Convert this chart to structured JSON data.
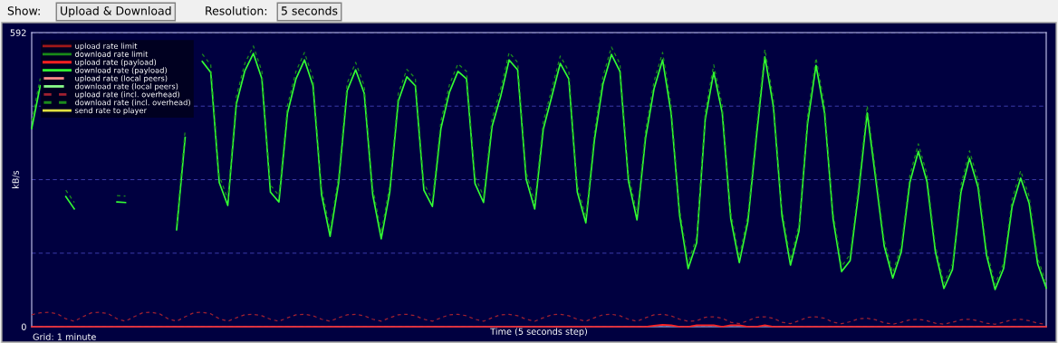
{
  "chart_data": {
    "type": "line",
    "xlabel": "Time (5 seconds step)",
    "ylabel": "kB/s",
    "annotations": [
      "Show:",
      "Upload & Download",
      "Resolution:",
      "5 seconds",
      "Grid: 1 minute"
    ],
    "categories": [
      null,
      null,
      null,
      null,
      null,
      null,
      null,
      null,
      null,
      null,
      null,
      null,
      null,
      null,
      null,
      null,
      null,
      null,
      null,
      null,
      null,
      null,
      null,
      null,
      null,
      null,
      null,
      null,
      null,
      null,
      null,
      null,
      null,
      null,
      null,
      null,
      null,
      null,
      null,
      null,
      null,
      null,
      null,
      null,
      null,
      null,
      null,
      null,
      null,
      null,
      null,
      null,
      null,
      null,
      null,
      null,
      null,
      null,
      null,
      null,
      null,
      null,
      null,
      null,
      null,
      null,
      null,
      null,
      null,
      null,
      null,
      null,
      null,
      null,
      null,
      null,
      null,
      null,
      null,
      null,
      null,
      null,
      null,
      null,
      null,
      null,
      null,
      null,
      null,
      null,
      null,
      null,
      null,
      null,
      null,
      null,
      null,
      null,
      null,
      null,
      null,
      null,
      null,
      null,
      null,
      null,
      null,
      null,
      null,
      null,
      null,
      null,
      null,
      null,
      null,
      null,
      null,
      null,
      null,
      null
    ],
    "ylim": [
      0,
      592
    ],
    "yticks": [
      0,
      {
        "value": 148,
        "label": null
      },
      {
        "value": 296,
        "label": null
      },
      {
        "value": 444,
        "label": null
      },
      592
    ],
    "grid": "y",
    "legend": "top left",
    "series": [
      {
        "name": "upload rate limit",
        "color": "#a01818",
        "line_style": "solid",
        "values": [
          null,
          null,
          null,
          null,
          null,
          null,
          null,
          null,
          null,
          null,
          null,
          null,
          null,
          null,
          null,
          null,
          null,
          null,
          null,
          null,
          null,
          null,
          null,
          null,
          null,
          null,
          null,
          null,
          null,
          null,
          null,
          null,
          null,
          null,
          null,
          null,
          null,
          null,
          null,
          null,
          null,
          null,
          null,
          null,
          null,
          null,
          null,
          null,
          null,
          null,
          null,
          null,
          null,
          null,
          null,
          null,
          null,
          null,
          null,
          null,
          null,
          null,
          null,
          null,
          null,
          null,
          null,
          null,
          null,
          null,
          null,
          null,
          null,
          null,
          null,
          null,
          null,
          null,
          null,
          null,
          null,
          null,
          null,
          null,
          null,
          null,
          null,
          null,
          null,
          null,
          null,
          null,
          null,
          null,
          null,
          null,
          null,
          null,
          null,
          null,
          null,
          null,
          null,
          null,
          null,
          null,
          null,
          null,
          null,
          null,
          null,
          null,
          null,
          null,
          null,
          null,
          null,
          null,
          null,
          null
        ]
      },
      {
        "name": "download rate limit",
        "color": "#188a18",
        "line_style": "solid",
        "values": [
          null,
          null,
          null,
          null,
          null,
          null,
          null,
          null,
          null,
          null,
          null,
          null,
          null,
          null,
          null,
          null,
          null,
          null,
          null,
          null,
          null,
          null,
          null,
          null,
          null,
          null,
          null,
          null,
          null,
          null,
          null,
          null,
          null,
          null,
          null,
          null,
          null,
          null,
          null,
          null,
          null,
          null,
          null,
          null,
          null,
          null,
          null,
          null,
          null,
          null,
          null,
          null,
          null,
          null,
          null,
          null,
          null,
          null,
          null,
          null,
          null,
          null,
          null,
          null,
          null,
          null,
          null,
          null,
          null,
          null,
          null,
          null,
          null,
          null,
          null,
          null,
          null,
          null,
          null,
          null,
          null,
          null,
          null,
          null,
          null,
          null,
          null,
          null,
          null,
          null,
          null,
          null,
          null,
          null,
          null,
          null,
          null,
          null,
          null,
          null,
          null,
          null,
          null,
          null,
          null,
          null,
          null,
          null,
          null,
          null,
          null,
          null,
          null,
          null,
          null,
          null,
          null,
          null,
          null,
          null
        ]
      },
      {
        "name": "upload rate (payload)",
        "color": "#ff2020",
        "line_style": "solid",
        "values": [
          0,
          0,
          0,
          0,
          0,
          0,
          0,
          0,
          0,
          0,
          0,
          0,
          0,
          0,
          0,
          0,
          0,
          0,
          0,
          0,
          0,
          0,
          0,
          0,
          0,
          0,
          0,
          0,
          0,
          0,
          0,
          0,
          0,
          0,
          0,
          0,
          0,
          0,
          0,
          0,
          0,
          0,
          0,
          0,
          0,
          0,
          0,
          0,
          0,
          0,
          0,
          0,
          0,
          0,
          0,
          0,
          0,
          0,
          0,
          0,
          0,
          0,
          0,
          0,
          0,
          0,
          0,
          0,
          0,
          0,
          0,
          0,
          0,
          2,
          4,
          3,
          0,
          0,
          3,
          3,
          3,
          0,
          3,
          3,
          0,
          0,
          3,
          0,
          0,
          0,
          0,
          0,
          0,
          0,
          0,
          0,
          0,
          0,
          0,
          0,
          0,
          0,
          0,
          0,
          0,
          0,
          0,
          0,
          0,
          0,
          0,
          0,
          0,
          0,
          0,
          0,
          0,
          0,
          0,
          0
        ]
      },
      {
        "name": "download rate (payload)",
        "color": "#33ff33",
        "line_style": "solid",
        "values": [
          399,
          485,
          null,
          null,
          262,
          237,
          null,
          null,
          null,
          null,
          251,
          250,
          null,
          null,
          null,
          null,
          null,
          195,
          381,
          null,
          534,
          512,
          290,
          244,
          448,
          515,
          550,
          499,
          271,
          251,
          430,
          499,
          537,
          485,
          266,
          182,
          290,
          475,
          517,
          470,
          266,
          177,
          271,
          454,
          503,
          485,
          275,
          242,
          399,
          472,
          514,
          499,
          288,
          250,
          403,
          463,
          537,
          517,
          297,
          237,
          397,
          463,
          530,
          499,
          271,
          209,
          375,
          488,
          548,
          514,
          293,
          215,
          379,
          479,
          537,
          430,
          224,
          117,
          169,
          417,
          512,
          430,
          217,
          129,
          211,
          381,
          543,
          443,
          224,
          124,
          193,
          408,
          526,
          430,
          217,
          111,
          133,
          271,
          430,
          297,
          162,
          98,
          151,
          290,
          353,
          293,
          151,
          77,
          115,
          271,
          339,
          281,
          144,
          75,
          117,
          242,
          299,
          248,
          126,
          78
        ]
      },
      {
        "name": "upload rate (local peers)",
        "color": "#ff8a8a",
        "line_style": "dashed",
        "values": [
          null,
          null,
          null,
          null,
          null,
          null,
          null,
          null,
          null,
          null,
          null,
          null,
          null,
          null,
          null,
          null,
          null,
          null,
          null,
          null,
          null,
          null,
          null,
          null,
          null,
          null,
          null,
          null,
          null,
          null,
          null,
          null,
          null,
          null,
          null,
          null,
          null,
          null,
          null,
          null,
          null,
          null,
          null,
          null,
          null,
          null,
          null,
          null,
          null,
          null,
          null,
          null,
          null,
          null,
          null,
          null,
          null,
          null,
          null,
          null,
          null,
          null,
          null,
          null,
          null,
          null,
          null,
          null,
          null,
          null,
          null,
          null,
          null,
          null,
          null,
          null,
          null,
          null,
          null,
          null,
          null,
          null,
          null,
          null,
          null,
          null,
          null,
          null,
          null,
          null,
          null,
          null,
          null,
          null,
          null,
          null,
          null,
          null,
          null,
          null,
          null,
          null,
          null,
          null,
          null,
          null,
          null,
          null,
          null,
          null,
          null,
          null,
          null,
          null,
          null,
          null,
          null,
          null,
          null,
          null
        ]
      },
      {
        "name": "download rate (local peers)",
        "color": "#8aff8a",
        "line_style": "dashed",
        "values": [
          null,
          null,
          null,
          null,
          null,
          null,
          null,
          null,
          null,
          null,
          null,
          null,
          null,
          null,
          null,
          null,
          null,
          null,
          null,
          null,
          null,
          null,
          null,
          null,
          null,
          null,
          null,
          null,
          null,
          null,
          null,
          null,
          null,
          null,
          null,
          null,
          null,
          null,
          null,
          null,
          null,
          null,
          null,
          null,
          null,
          null,
          null,
          null,
          null,
          null,
          null,
          null,
          null,
          null,
          null,
          null,
          null,
          null,
          null,
          null,
          null,
          null,
          null,
          null,
          null,
          null,
          null,
          null,
          null,
          null,
          null,
          null,
          null,
          null,
          null,
          null,
          null,
          null,
          null,
          null,
          null,
          null,
          null,
          null,
          null,
          null,
          null,
          null,
          null,
          null,
          null,
          null,
          null,
          null,
          null,
          null,
          null,
          null,
          null,
          null,
          null,
          null,
          null,
          null,
          null,
          null,
          null,
          null,
          null,
          null,
          null,
          null,
          null,
          null,
          null,
          null,
          null,
          null,
          null,
          null
        ]
      },
      {
        "name": "upload rate (incl. overhead)",
        "color": "#a02030",
        "line_style": "dotted",
        "values": [
          24,
          28,
          29,
          26,
          16,
          11,
          20,
          28,
          29,
          26,
          16,
          11,
          20,
          28,
          29,
          26,
          16,
          11,
          20,
          28,
          29,
          26,
          16,
          11,
          18,
          24,
          25,
          22,
          15,
          11,
          18,
          24,
          25,
          22,
          15,
          11,
          18,
          24,
          25,
          22,
          15,
          11,
          18,
          24,
          25,
          22,
          15,
          11,
          18,
          24,
          25,
          22,
          15,
          11,
          18,
          24,
          25,
          22,
          15,
          11,
          18,
          24,
          25,
          22,
          15,
          11,
          18,
          24,
          25,
          22,
          15,
          11,
          18,
          24,
          25,
          22,
          15,
          11,
          12,
          19,
          20,
          17,
          9,
          6,
          12,
          19,
          20,
          17,
          9,
          6,
          12,
          19,
          20,
          17,
          9,
          6,
          10,
          16,
          17,
          14,
          8,
          5,
          9,
          14,
          15,
          12,
          7,
          5,
          9,
          14,
          15,
          12,
          7,
          5,
          9,
          14,
          15,
          12,
          7,
          5
        ]
      },
      {
        "name": "download rate (incl. overhead)",
        "color": "#1c8c1c",
        "line_style": "dotted",
        "values": [
          414,
          500,
          null,
          null,
          275,
          250,
          null,
          null,
          null,
          null,
          264,
          263,
          null,
          null,
          null,
          null,
          null,
          207,
          396,
          null,
          549,
          527,
          304,
          257,
          463,
          530,
          565,
          514,
          285,
          264,
          445,
          514,
          552,
          500,
          280,
          194,
          304,
          490,
          532,
          485,
          280,
          189,
          285,
          469,
          518,
          500,
          289,
          255,
          414,
          487,
          529,
          514,
          302,
          263,
          418,
          478,
          552,
          532,
          311,
          250,
          412,
          478,
          545,
          514,
          285,
          221,
          390,
          503,
          563,
          529,
          307,
          227,
          394,
          494,
          552,
          445,
          237,
          128,
          181,
          432,
          527,
          445,
          230,
          140,
          224,
          396,
          558,
          458,
          237,
          135,
          206,
          423,
          541,
          445,
          230,
          122,
          145,
          285,
          445,
          311,
          174,
          109,
          163,
          304,
          368,
          307,
          163,
          87,
          126,
          285,
          354,
          295,
          156,
          85,
          128,
          256,
          314,
          262,
          138,
          88
        ]
      },
      {
        "name": "send rate to player",
        "color": "#e0e040",
        "line_style": "solid",
        "values": [
          null,
          null,
          null,
          null,
          null,
          null,
          null,
          null,
          null,
          null,
          null,
          null,
          null,
          null,
          null,
          null,
          null,
          null,
          null,
          null,
          null,
          null,
          null,
          null,
          null,
          null,
          null,
          null,
          null,
          null,
          null,
          null,
          null,
          null,
          null,
          null,
          null,
          null,
          null,
          null,
          null,
          null,
          null,
          null,
          null,
          null,
          null,
          null,
          null,
          null,
          null,
          null,
          null,
          null,
          null,
          null,
          null,
          null,
          null,
          null,
          null,
          null,
          null,
          null,
          null,
          null,
          null,
          null,
          null,
          null,
          null,
          null,
          null,
          null,
          null,
          null,
          null,
          null,
          null,
          null,
          null,
          null,
          null,
          null,
          null,
          null,
          null,
          null,
          null,
          null,
          null,
          null,
          null,
          null,
          null,
          null,
          null,
          null,
          null,
          null,
          null,
          null,
          null,
          null,
          null,
          null,
          null,
          null,
          null,
          null,
          null,
          null,
          null,
          null,
          null,
          null,
          null,
          null,
          null,
          null
        ]
      }
    ]
  }
}
